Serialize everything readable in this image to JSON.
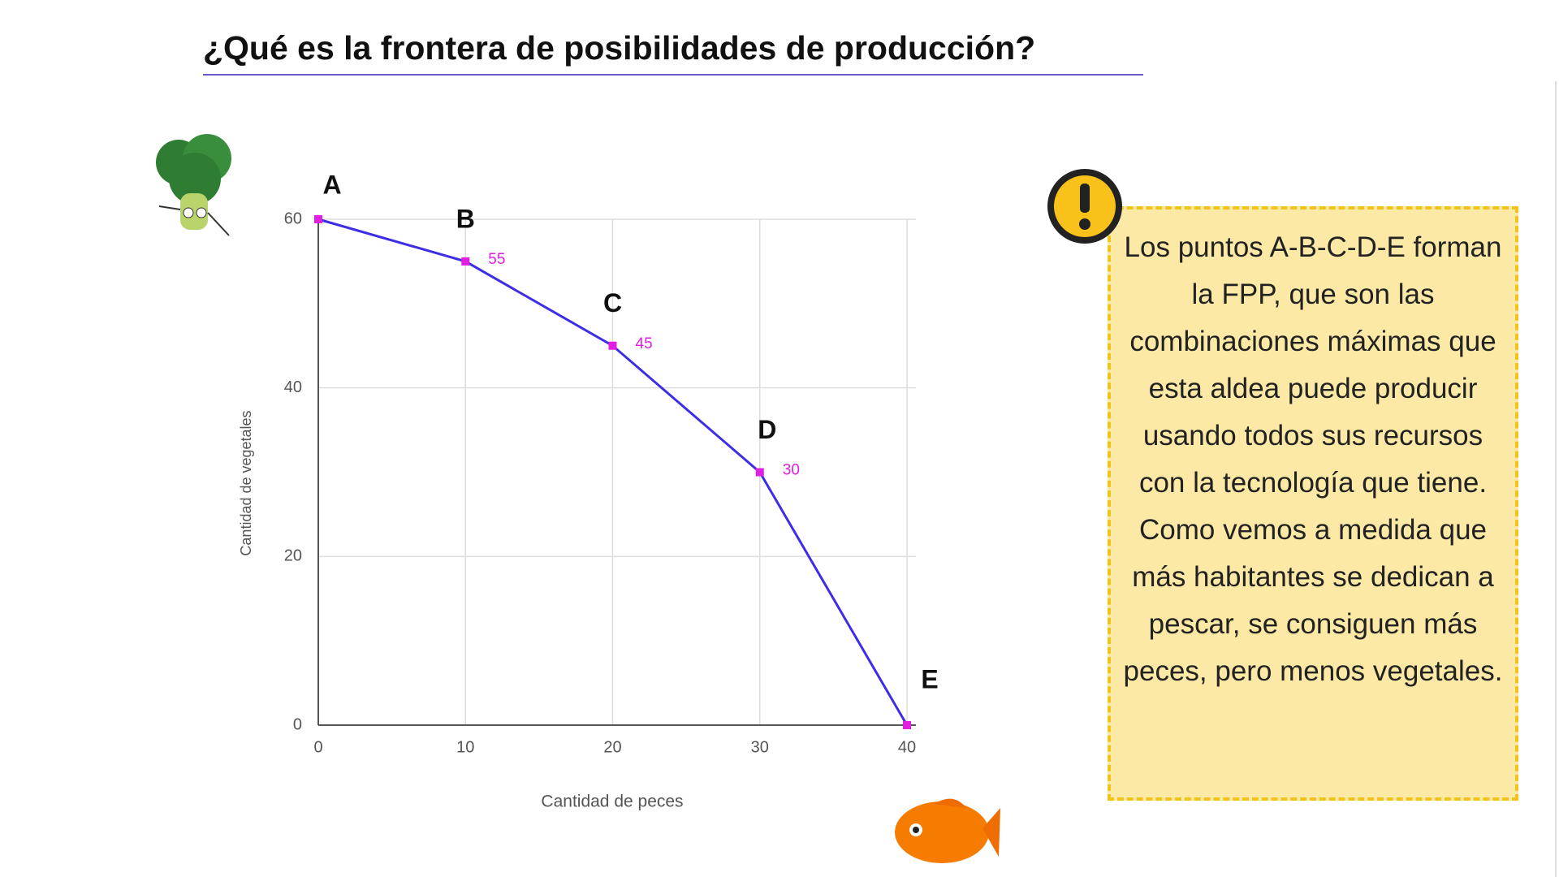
{
  "chart_data": {
    "type": "line",
    "title": "¿Qué es la frontera de posibilidades de producción?",
    "x": [
      0,
      10,
      20,
      30,
      40
    ],
    "series": [
      {
        "name": "FPP",
        "color": "#3d2ee6",
        "marker_color": "#e21ee2",
        "values": [
          60,
          55,
          45,
          30,
          0
        ],
        "value_labels": [
          null,
          "55",
          "45",
          "30",
          null
        ],
        "point_labels": [
          "A",
          "B",
          "C",
          "D",
          "E"
        ]
      }
    ],
    "xlim": [
      0,
      40
    ],
    "xticks": [
      0,
      10,
      20,
      30,
      40
    ],
    "ylim": [
      0,
      60
    ],
    "yticks": [
      0,
      20,
      40,
      60
    ],
    "xlabel": "Cantidad de peces",
    "ylabel": "Cantidad de vegetales",
    "grid": true
  },
  "note": "Los puntos A-B-C-D-E forman la FPP, que son las combinaciones máximas que esta aldea puede producir usando todos sus recursos con la tecnología que tiene. Como vemos a medida que más habitantes se dedican a pescar, se consiguen más peces, pero menos vegetales."
}
